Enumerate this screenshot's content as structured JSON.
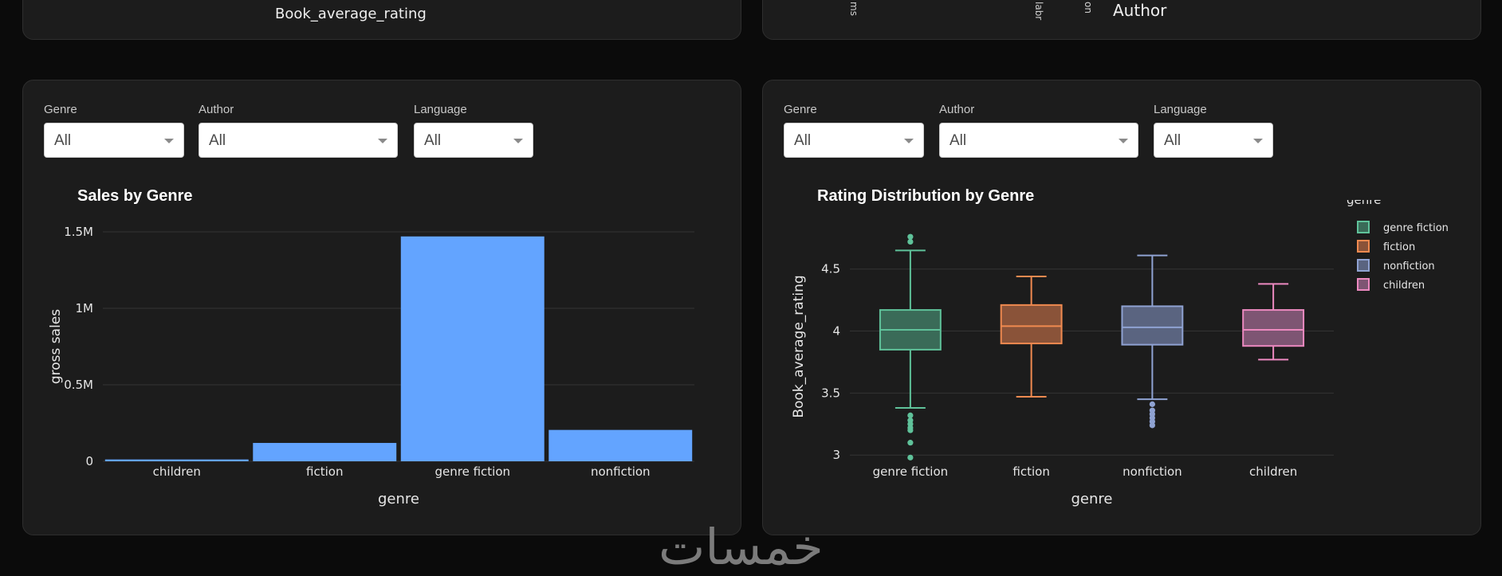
{
  "top": {
    "left_axis_label": "Book_average_rating",
    "right_rotated": [
      "ms",
      "labr",
      "on"
    ],
    "right_axis_label": "Author"
  },
  "filters": {
    "genre_label": "Genre",
    "author_label": "Author",
    "language_label": "Language",
    "genre_value": "All",
    "author_value": "All",
    "language_value": "All"
  },
  "bar_chart": {
    "title": "Sales by Genre",
    "chart_data": {
      "type": "bar",
      "categories": [
        "children",
        "fiction",
        "genre fiction",
        "nonfiction"
      ],
      "values": [
        12000,
        120000,
        1470000,
        205000
      ],
      "xlabel": "genre",
      "ylabel": "gross sales",
      "ylim": [
        0,
        1500000
      ],
      "yticks": [
        0,
        500000,
        1000000,
        1500000
      ],
      "ytick_labels": [
        "0",
        "0.5M",
        "1M",
        "1.5M"
      ],
      "bar_color": "#63a4ff",
      "grid": true
    }
  },
  "box_chart": {
    "title": "Rating Distribution by Genre",
    "chart_data": {
      "type": "box",
      "categories": [
        "genre fiction",
        "fiction",
        "nonfiction",
        "children"
      ],
      "xlabel": "genre",
      "ylabel": "Book_average_rating",
      "ylim": [
        2.95,
        4.8
      ],
      "yticks": [
        3,
        3.5,
        4,
        4.5
      ],
      "ytick_labels": [
        "3",
        "3.5",
        "4",
        "4.5"
      ],
      "legend_title": "genre",
      "legend_position": "right",
      "grid": true,
      "series": [
        {
          "name": "genre fiction",
          "color": "#5fc29a",
          "fill": "#3a6b58",
          "lower": 3.38,
          "q1": 3.85,
          "median": 4.01,
          "q3": 4.17,
          "upper": 4.65,
          "outliers": [
            4.76,
            4.72,
            3.32,
            3.28,
            3.25,
            3.22,
            3.2,
            3.1,
            2.98
          ]
        },
        {
          "name": "fiction",
          "color": "#f08a50",
          "fill": "#8a5339",
          "lower": 3.47,
          "q1": 3.9,
          "median": 4.04,
          "q3": 4.21,
          "upper": 4.44,
          "outliers": []
        },
        {
          "name": "nonfiction",
          "color": "#8fa2d2",
          "fill": "#5a6480",
          "lower": 3.45,
          "q1": 3.89,
          "median": 4.03,
          "q3": 4.2,
          "upper": 4.61,
          "outliers": [
            3.41,
            3.36,
            3.33,
            3.3,
            3.27,
            3.24
          ]
        },
        {
          "name": "children",
          "color": "#ec89c0",
          "fill": "#7e5573",
          "lower": 3.77,
          "q1": 3.88,
          "median": 4.01,
          "q3": 4.17,
          "upper": 4.38,
          "outliers": []
        }
      ]
    }
  },
  "watermark_text": "خمسات"
}
